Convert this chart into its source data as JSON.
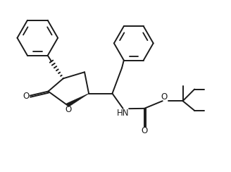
{
  "bg_color": "#ffffff",
  "line_color": "#1a1a1a",
  "line_width": 1.4,
  "figsize": [
    3.28,
    2.44
  ],
  "dpi": 100,
  "xlim": [
    0,
    10
  ],
  "ylim": [
    0,
    8
  ]
}
